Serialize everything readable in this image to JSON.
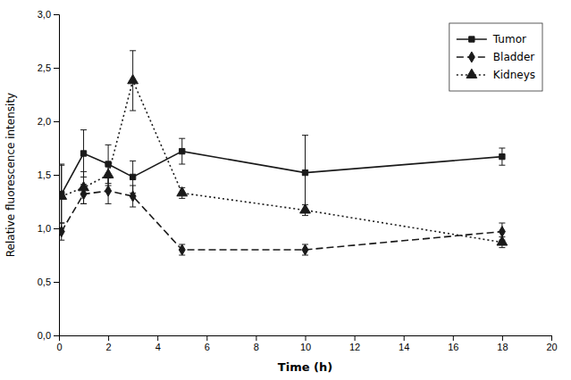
{
  "chart_data": {
    "type": "line",
    "x_label": "Time (h)",
    "y_label": "Relative fluorescence intensity",
    "x": [
      0.1,
      1,
      2,
      3,
      5,
      10,
      18
    ],
    "series": [
      {
        "name": "Tumor",
        "color": "#1a1a1a",
        "marker": "square",
        "line_style": "solid",
        "values": [
          1.32,
          1.7,
          1.6,
          1.48,
          1.72,
          1.52,
          1.67
        ],
        "errors": [
          0.27,
          0.22,
          0.18,
          0.15,
          0.12,
          0.35,
          0.08
        ]
      },
      {
        "name": "Bladder",
        "color": "#1a1a1a",
        "marker": "diamond",
        "line_style": "dashed",
        "values": [
          0.97,
          1.32,
          1.35,
          1.3,
          0.8,
          0.8,
          0.97
        ],
        "errors": [
          0.08,
          0.09,
          0.12,
          0.1,
          0.05,
          0.05,
          0.08
        ]
      },
      {
        "name": "Kidneys",
        "color": "#1a1a1a",
        "marker": "triangle",
        "line_style": "dotted",
        "values": [
          1.3,
          1.38,
          1.5,
          2.38,
          1.33,
          1.17,
          0.87
        ],
        "errors": [
          0.3,
          0.15,
          0.1,
          0.28,
          0.05,
          0.05,
          0.05
        ]
      }
    ],
    "xlim": [
      0,
      20
    ],
    "ylim": [
      0.0,
      3.0
    ],
    "xticks": [
      0,
      2,
      4,
      6,
      8,
      10,
      12,
      14,
      16,
      18,
      20
    ],
    "yticks": [
      {
        "value": 0.0,
        "label": "0,0"
      },
      {
        "value": 0.5,
        "label": "0,5"
      },
      {
        "value": 1.0,
        "label": "1,0"
      },
      {
        "value": 1.5,
        "label": "1,5"
      },
      {
        "value": 2.0,
        "label": "2,0"
      },
      {
        "value": 2.5,
        "label": "2,5"
      },
      {
        "value": 3.0,
        "label": "3,0"
      }
    ],
    "grid": false,
    "legend": "upper right"
  }
}
